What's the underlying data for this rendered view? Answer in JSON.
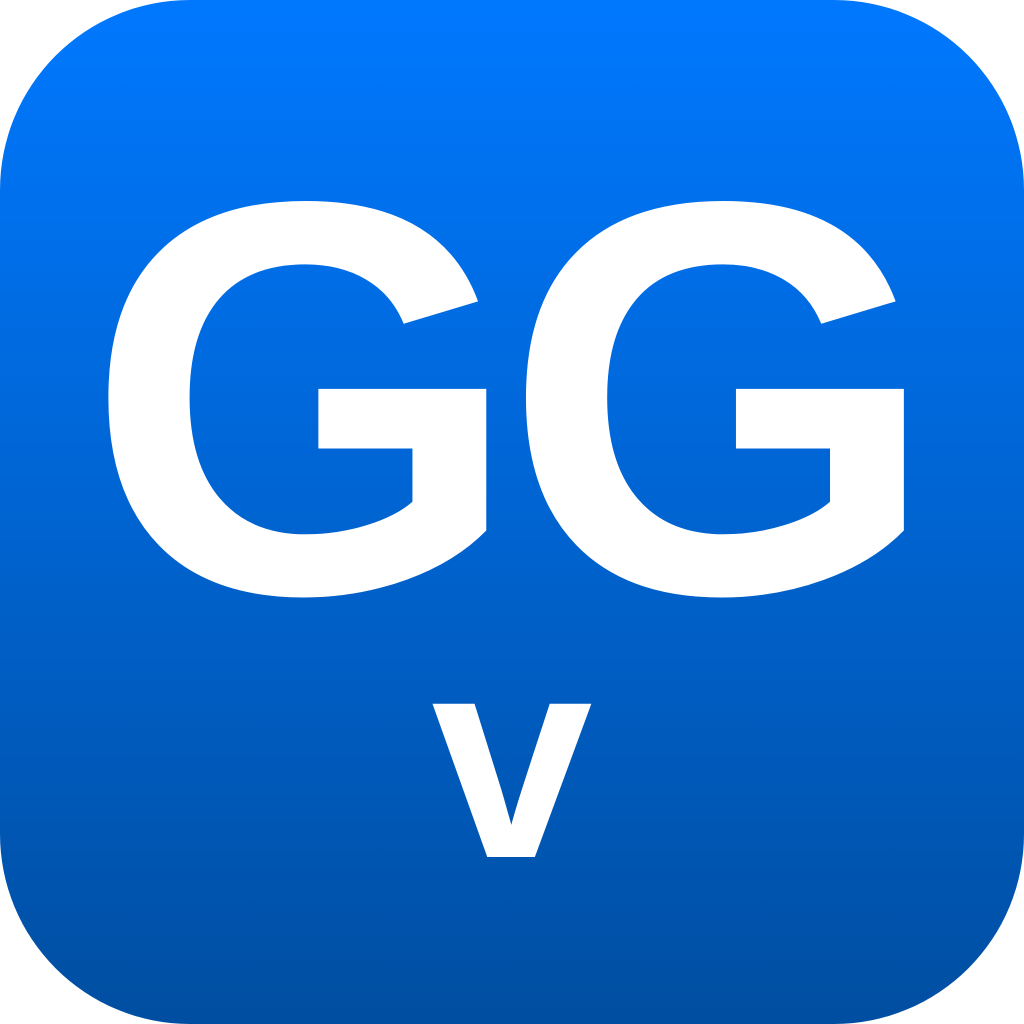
{
  "icon": {
    "primary_text": "GG",
    "secondary_text": "v",
    "text_color": "#ffffff",
    "background_gradient": [
      "#0078fe",
      "#004ea1"
    ]
  }
}
